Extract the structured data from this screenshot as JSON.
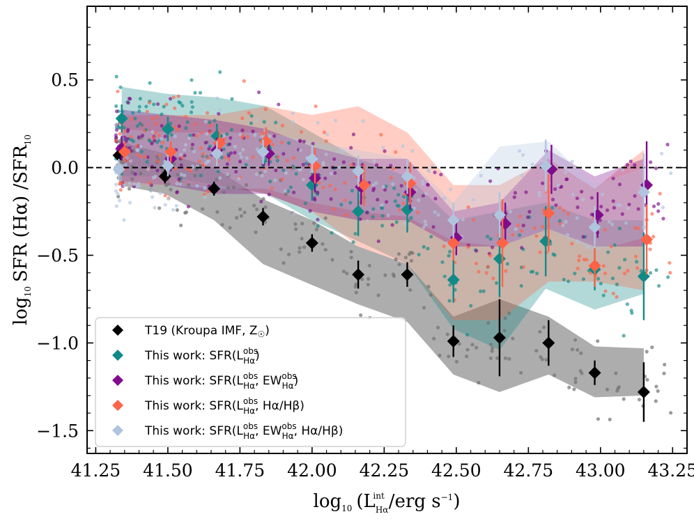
{
  "chart_data": {
    "type": "scatter",
    "title": "",
    "xlabel": "log10 (L^int_Hα / erg s^-1)",
    "ylabel": "log10 SFR (Hα) / SFR10",
    "xlim": [
      41.22,
      43.3
    ],
    "ylim": [
      -1.63,
      0.92
    ],
    "xticks": [
      41.25,
      41.5,
      41.75,
      42.0,
      42.25,
      42.5,
      42.75,
      43.0,
      43.25
    ],
    "xtick_labels": [
      "41.25",
      "41.50",
      "41.75",
      "42.00",
      "42.25",
      "42.50",
      "42.75",
      "43.00",
      "43.25"
    ],
    "yticks": [
      0.5,
      0.0,
      -0.5,
      -1.0,
      -1.5
    ],
    "ytick_labels": [
      "0.5",
      "0.0",
      "−0.5",
      "−1.0",
      "−1.5"
    ],
    "reference_line_y": 0.0,
    "legend_position": "lower-left",
    "series": [
      {
        "name": "T19 (Kroupa IMF, Z☉)",
        "legend_main": "T19 (Kroupa IMF, Z",
        "legend_sym": "☉",
        "legend_close": ")",
        "color": "#000000",
        "x": [
          41.33,
          41.49,
          41.66,
          41.83,
          42.0,
          42.16,
          42.33,
          42.49,
          42.65,
          42.82,
          42.98,
          43.15
        ],
        "y": [
          0.07,
          -0.05,
          -0.12,
          -0.28,
          -0.43,
          -0.61,
          -0.61,
          -0.99,
          -0.97,
          -1.0,
          -1.17,
          -1.28
        ],
        "err": [
          0.04,
          0.04,
          0.04,
          0.05,
          0.05,
          0.08,
          0.07,
          0.09,
          0.22,
          0.13,
          0.07,
          0.17
        ],
        "band_x": [
          41.33,
          41.49,
          41.66,
          41.83,
          42.0,
          42.16,
          42.33,
          42.49,
          42.65,
          42.82,
          42.98,
          43.15
        ],
        "band_lo": [
          -0.1,
          -0.15,
          -0.3,
          -0.55,
          -0.67,
          -0.78,
          -0.88,
          -1.18,
          -1.28,
          -1.18,
          -1.31,
          -1.3
        ],
        "band_hi": [
          0.15,
          0.08,
          0.0,
          -0.18,
          -0.3,
          -0.45,
          -0.55,
          -0.85,
          -0.75,
          -0.85,
          -1.02,
          -1.03
        ]
      },
      {
        "name": "This work: SFR(L^obs_Hα)",
        "legend_main": "This work: SFR(L",
        "legend_sup": [
          "obs"
        ],
        "legend_sub": [
          "Hα"
        ],
        "legend_tail": [
          ")"
        ],
        "color": "#108a87",
        "x": [
          41.34,
          41.5,
          41.67,
          41.84,
          42.0,
          42.16,
          42.33,
          42.49,
          42.65,
          42.81,
          42.98,
          43.15
        ],
        "y": [
          0.28,
          0.22,
          0.18,
          0.11,
          -0.1,
          -0.25,
          -0.24,
          -0.64,
          -0.52,
          -0.42,
          -0.58,
          -0.62
        ],
        "err": [
          0.08,
          0.07,
          0.07,
          0.08,
          0.09,
          0.14,
          0.13,
          0.13,
          0.22,
          0.2,
          0.12,
          0.25
        ],
        "band_x": [
          41.34,
          41.5,
          41.67,
          41.84,
          42.0,
          42.16,
          42.33,
          42.49,
          42.65,
          42.81,
          42.98,
          43.15
        ],
        "band_lo": [
          -0.05,
          -0.05,
          -0.1,
          -0.15,
          -0.3,
          -0.42,
          -0.55,
          -0.92,
          -1.04,
          -0.69,
          -0.81,
          -0.72
        ],
        "band_hi": [
          0.46,
          0.42,
          0.4,
          0.35,
          0.2,
          0.05,
          -0.05,
          -0.3,
          -0.25,
          -0.2,
          -0.3,
          -0.3
        ]
      },
      {
        "name": "This work: SFR(L^obs_Hα, EW^obs_Hα)",
        "legend_main": "This work: SFR(L",
        "legend_sup": [
          "obs",
          "obs"
        ],
        "legend_sub": [
          "Hα",
          "Hα"
        ],
        "legend_tail": [
          ", EW",
          ")"
        ],
        "color": "#800c8c",
        "x": [
          41.34,
          41.51,
          41.67,
          41.85,
          42.01,
          42.17,
          42.34,
          42.5,
          42.67,
          42.83,
          42.99,
          43.16
        ],
        "y": [
          0.11,
          0.05,
          0.1,
          0.08,
          -0.06,
          -0.11,
          -0.14,
          -0.4,
          -0.32,
          -0.01,
          -0.27,
          -0.1
        ],
        "err": [
          0.07,
          0.07,
          0.07,
          0.07,
          0.08,
          0.1,
          0.1,
          0.1,
          0.12,
          0.14,
          0.13,
          0.25
        ],
        "band_x": [
          41.34,
          41.5,
          41.67,
          41.84,
          42.0,
          42.16,
          42.33,
          42.49,
          42.65,
          42.82,
          42.98,
          43.15
        ],
        "band_lo": [
          -0.08,
          -0.1,
          -0.15,
          -0.15,
          -0.25,
          -0.3,
          -0.3,
          -0.45,
          -0.45,
          -0.35,
          -0.45,
          -0.45
        ],
        "band_hi": [
          0.33,
          0.3,
          0.27,
          0.22,
          0.12,
          0.05,
          0.05,
          -0.25,
          -0.2,
          0.1,
          -0.05,
          0.05
        ]
      },
      {
        "name": "This work: SFR(L^obs_Hα, Hα/Hβ)",
        "legend_main": "This work: SFR(L",
        "legend_sup": [
          "obs"
        ],
        "legend_sub": [
          "Hα"
        ],
        "legend_tail": [
          ", Hα/Hβ)"
        ],
        "color": "#ff6347",
        "x": [
          41.35,
          41.51,
          41.68,
          41.84,
          42.01,
          42.18,
          42.34,
          42.49,
          42.66,
          42.82,
          42.98,
          43.16
        ],
        "y": [
          0.09,
          0.09,
          0.14,
          0.15,
          0.01,
          -0.1,
          -0.09,
          -0.43,
          -0.43,
          -0.26,
          -0.56,
          -0.41
        ],
        "err": [
          0.06,
          0.06,
          0.07,
          0.08,
          0.1,
          0.12,
          0.12,
          0.1,
          0.25,
          0.22,
          0.12,
          0.2
        ],
        "band_x": [
          41.34,
          41.5,
          41.67,
          41.84,
          42.0,
          42.16,
          42.33,
          42.49,
          42.65,
          42.82,
          42.98,
          43.15
        ],
        "band_lo": [
          -0.1,
          -0.1,
          -0.1,
          -0.15,
          -0.25,
          -0.45,
          -0.55,
          -0.87,
          -0.87,
          -0.65,
          -0.65,
          -0.7
        ],
        "band_hi": [
          0.3,
          0.3,
          0.3,
          0.35,
          0.3,
          0.35,
          0.2,
          -0.1,
          -0.1,
          0.05,
          -0.12,
          0.1
        ]
      },
      {
        "name": "This work: SFR(L^obs_Hα, EW^obs_Hα, Hα/Hβ)",
        "legend_main": "This work: SFR(L",
        "legend_sup": [
          "obs",
          "obs"
        ],
        "legend_sub": [
          "Hα",
          "Hα"
        ],
        "legend_tail": [
          ", EW",
          ", Hα/Hβ)"
        ],
        "color": "#b0c4de",
        "x": [
          41.33,
          41.5,
          41.67,
          41.83,
          42.0,
          42.16,
          42.33,
          42.49,
          42.65,
          42.81,
          42.98,
          43.15
        ],
        "y": [
          -0.01,
          0.01,
          0.08,
          0.09,
          0.05,
          -0.02,
          -0.05,
          -0.3,
          -0.27,
          0.01,
          -0.34,
          -0.14
        ],
        "err": [
          0.06,
          0.06,
          0.07,
          0.07,
          0.08,
          0.09,
          0.1,
          0.1,
          0.13,
          0.15,
          0.12,
          0.22
        ],
        "band_x": [
          41.34,
          41.5,
          41.67,
          41.84,
          42.0,
          42.16,
          42.33,
          42.49,
          42.65,
          42.82,
          42.98,
          43.15
        ],
        "band_lo": [
          -0.1,
          -0.1,
          -0.12,
          -0.12,
          -0.2,
          -0.25,
          -0.28,
          -0.42,
          -0.45,
          -0.35,
          -0.48,
          -0.4
        ],
        "band_hi": [
          0.22,
          0.2,
          0.2,
          0.2,
          0.15,
          0.1,
          0.05,
          -0.2,
          0.12,
          0.15,
          -0.1,
          0.0
        ]
      }
    ]
  }
}
